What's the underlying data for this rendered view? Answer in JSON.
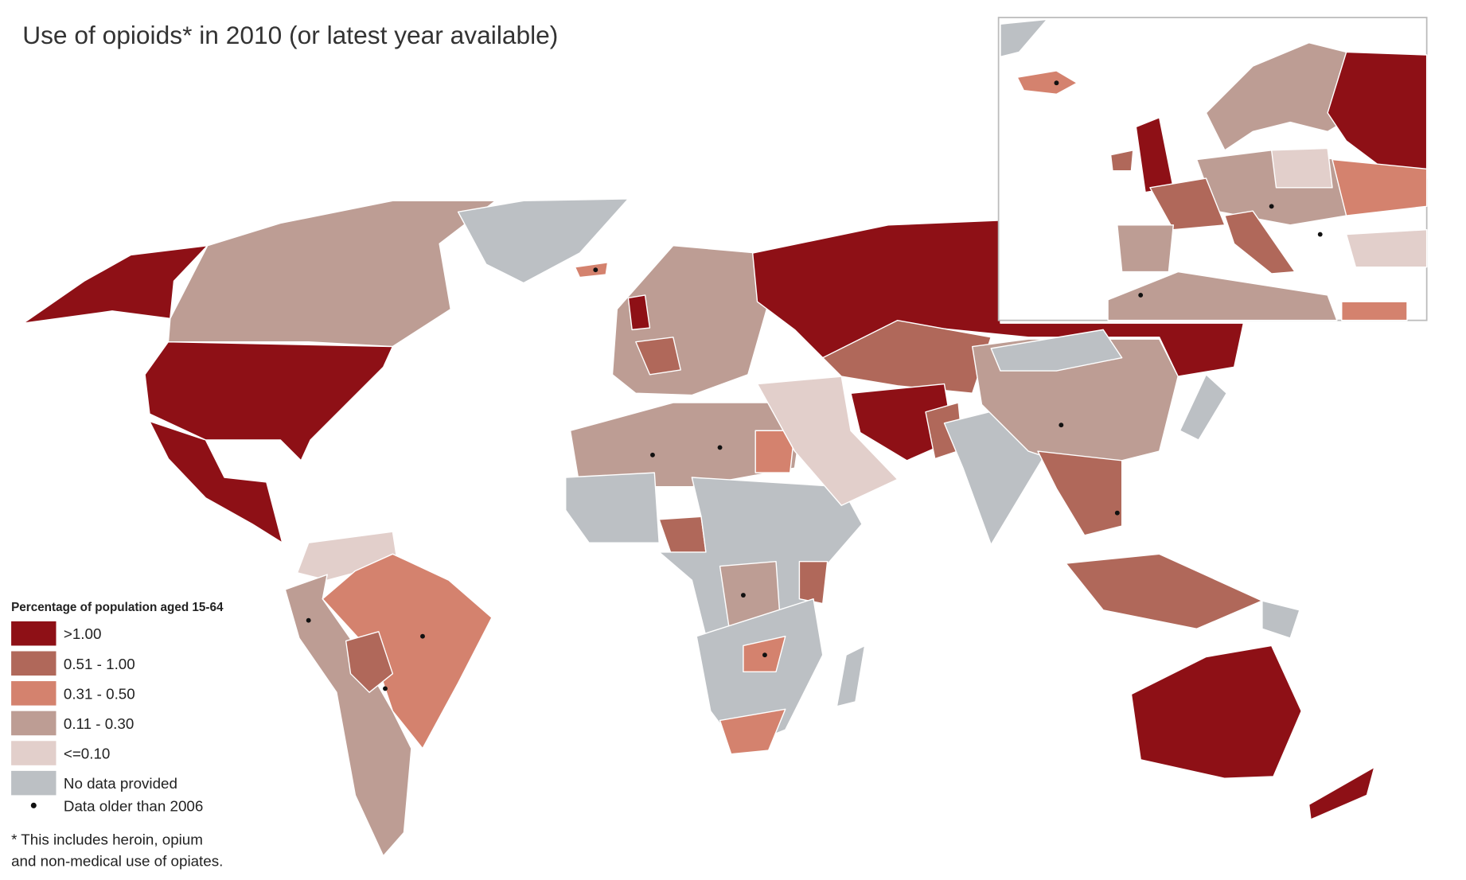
{
  "title": "Use of opioids* in 2010 (or latest year available)",
  "legend": {
    "title": "Percentage of population aged 15-64",
    "items": [
      {
        "label": ">1.00",
        "color": "#8e1016"
      },
      {
        "label": "0.51 - 1.00",
        "color": "#b0685a"
      },
      {
        "label": "0.31 - 0.50",
        "color": "#d4826e"
      },
      {
        "label": "0.11 - 0.30",
        "color": "#bd9d94"
      },
      {
        "label": "<=0.10",
        "color": "#e2cfcb"
      },
      {
        "label": "No data provided",
        "color": "#bcc0c4"
      }
    ],
    "dot_label": "Data older than 2006"
  },
  "footnote": [
    "* This includes heroin, opium",
    "and non-medical use of opiates."
  ]
}
